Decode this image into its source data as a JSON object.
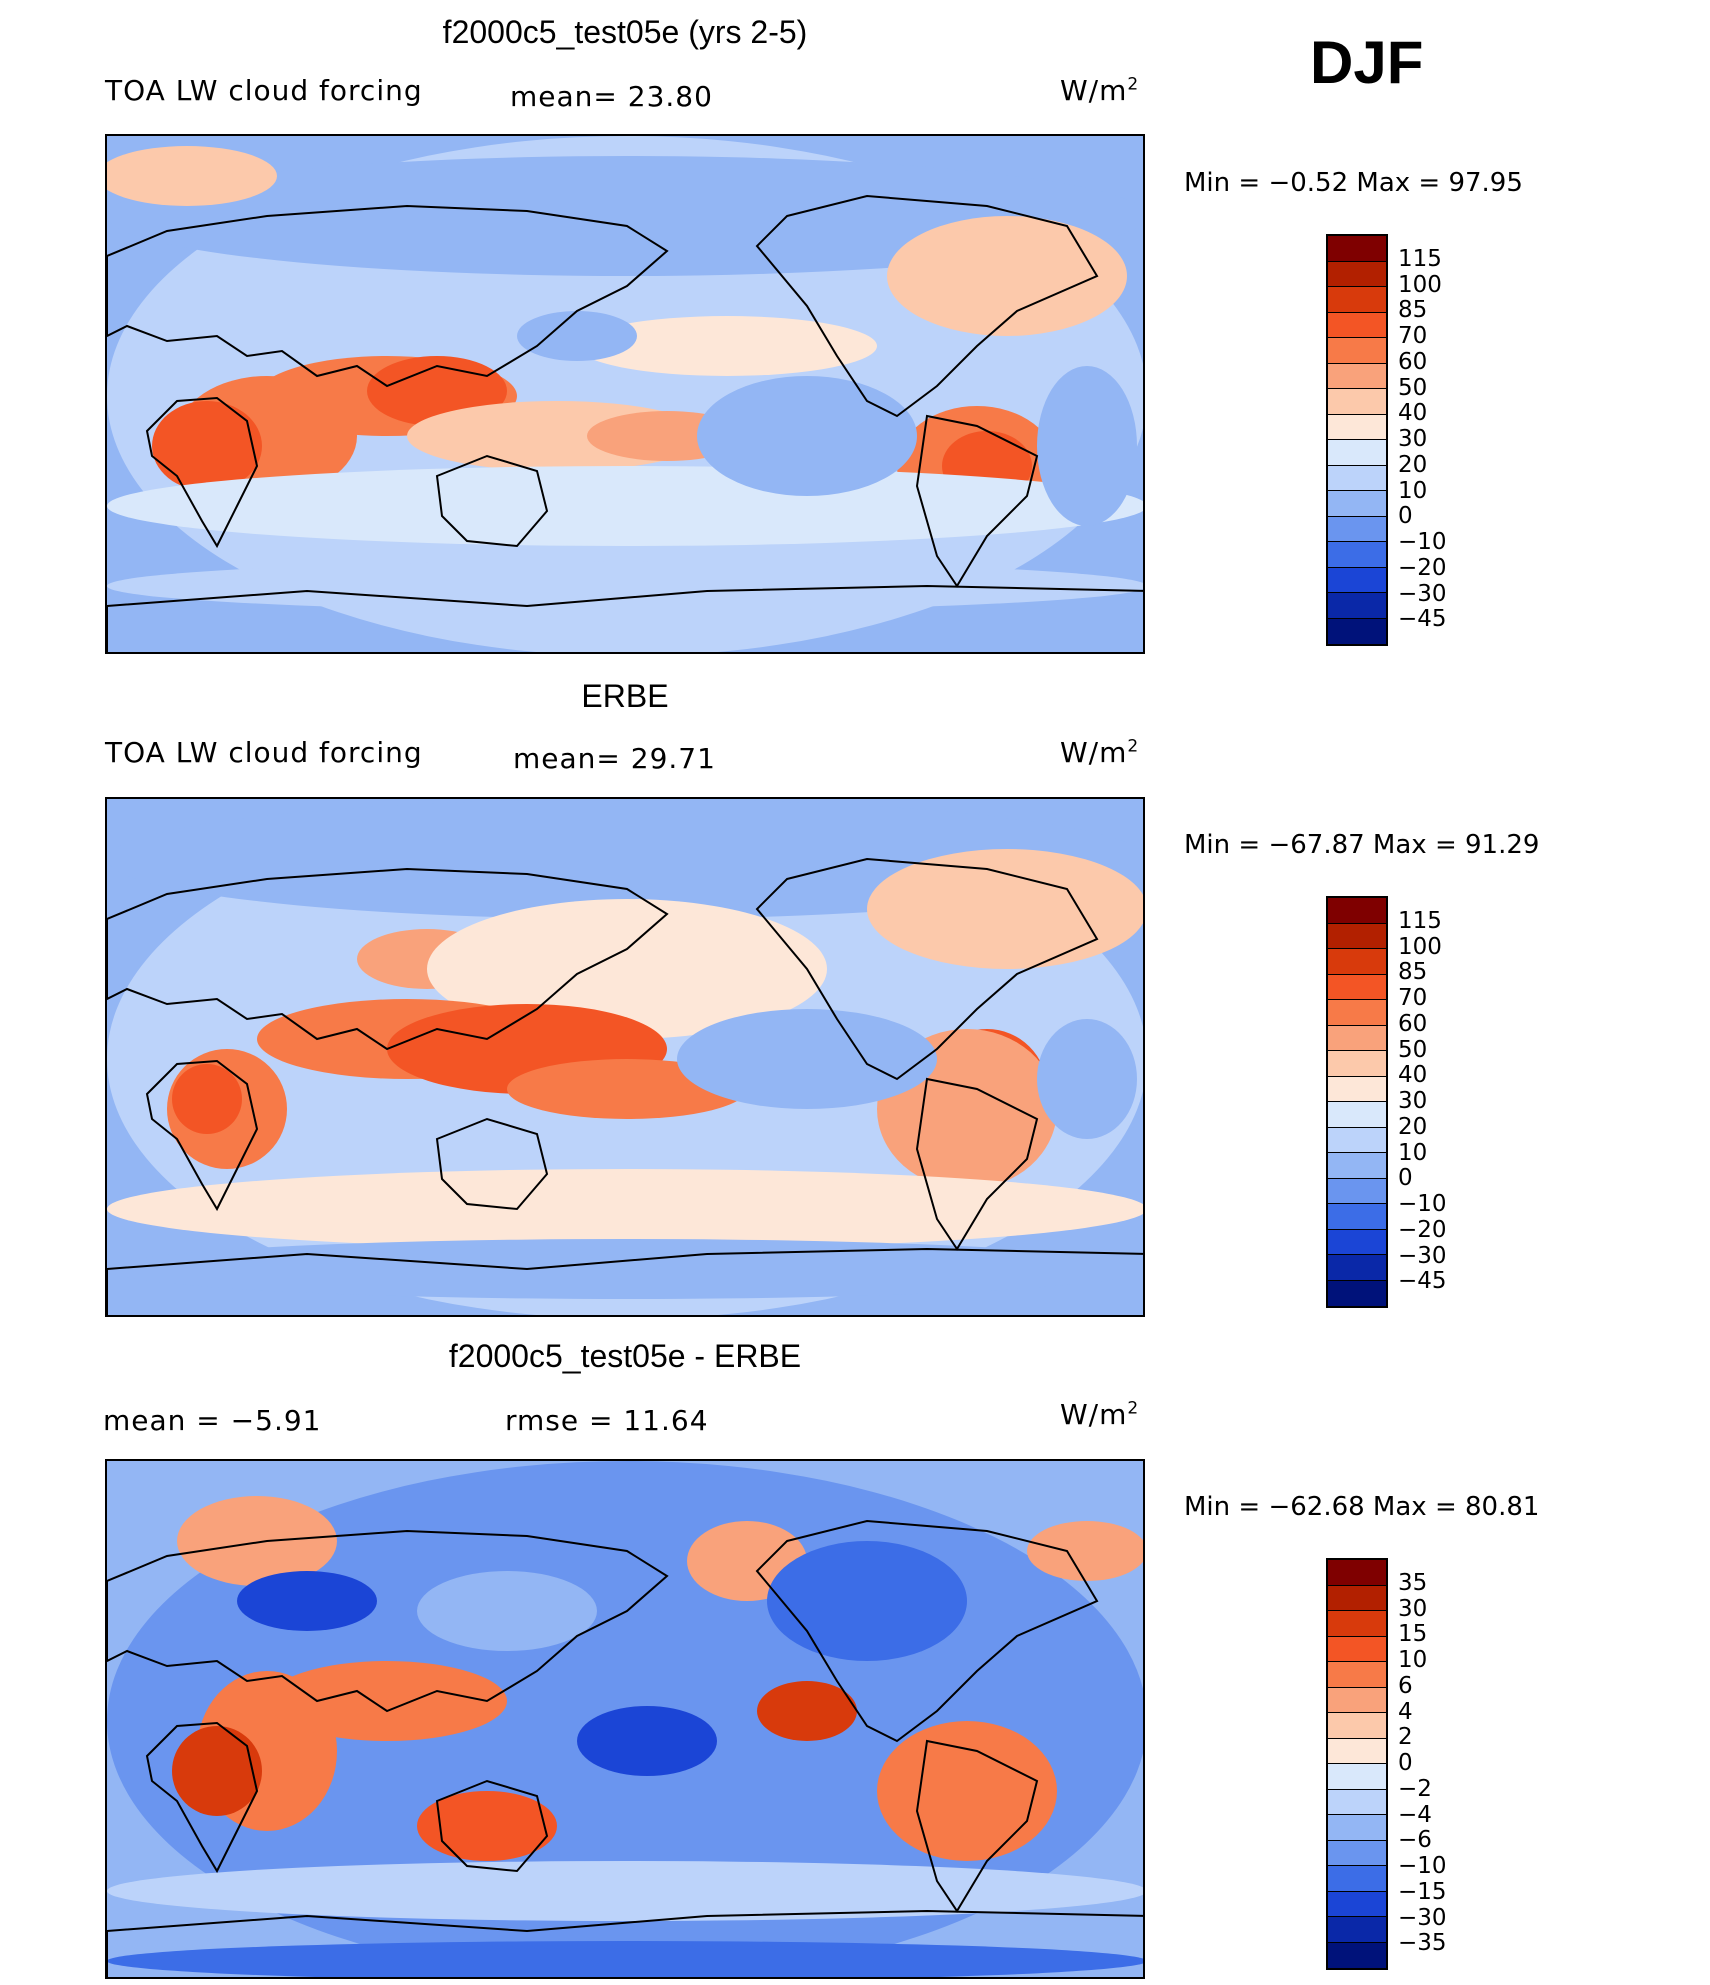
{
  "season": "DJF",
  "panels": [
    {
      "title": "f2000c5_test05e (yrs 2-5)",
      "left": "TOA LW cloud forcing",
      "stat": "mean=  23.80",
      "units": "W/m",
      "units_sup": "2",
      "minmax": "Min  =   −0.52  Max  =   97.95",
      "colorbar": {
        "labels": [
          "115",
          "100",
          "85",
          "70",
          "60",
          "50",
          "40",
          "30",
          "20",
          "10",
          "0",
          "−10",
          "−20",
          "−30",
          "−45"
        ],
        "colors": [
          "#7f0000",
          "#b22000",
          "#d83a0c",
          "#f35525",
          "#f77a48",
          "#f9a27b",
          "#fcc9ab",
          "#fde7d8",
          "#d9e8fb",
          "#bcd3fa",
          "#93b6f4",
          "#6a95ef",
          "#3c6de7",
          "#1b45d6",
          "#0a28a8",
          "#00127a"
        ]
      }
    },
    {
      "title": "ERBE",
      "left": "TOA LW cloud forcing",
      "stat": "mean=  29.71",
      "units": "W/m",
      "units_sup": "2",
      "minmax": "Min  = −67.87  Max  =   91.29",
      "colorbar": {
        "labels": [
          "115",
          "100",
          "85",
          "70",
          "60",
          "50",
          "40",
          "30",
          "20",
          "10",
          "0",
          "−10",
          "−20",
          "−30",
          "−45"
        ],
        "colors": [
          "#7f0000",
          "#b22000",
          "#d83a0c",
          "#f35525",
          "#f77a48",
          "#f9a27b",
          "#fcc9ab",
          "#fde7d8",
          "#d9e8fb",
          "#bcd3fa",
          "#93b6f4",
          "#6a95ef",
          "#3c6de7",
          "#1b45d6",
          "#0a28a8",
          "#00127a"
        ]
      }
    },
    {
      "title": "f2000c5_test05e - ERBE",
      "left": "mean  =    −5.91",
      "stat": "rmse  =    11.64",
      "units": "W/m",
      "units_sup": "2",
      "minmax": "Min  = −62.68  Max  =   80.81",
      "colorbar": {
        "labels": [
          "35",
          "30",
          "15",
          "10",
          "6",
          "4",
          "2",
          "0",
          "−2",
          "−4",
          "−6",
          "−10",
          "−15",
          "−30",
          "−35"
        ],
        "colors": [
          "#7f0000",
          "#b22000",
          "#d83a0c",
          "#f35525",
          "#f77a48",
          "#f9a27b",
          "#fcc9ab",
          "#fde7d8",
          "#d9e8fb",
          "#bcd3fa",
          "#93b6f4",
          "#6a95ef",
          "#3c6de7",
          "#1b45d6",
          "#0a28a8",
          "#00127a"
        ]
      }
    }
  ]
}
